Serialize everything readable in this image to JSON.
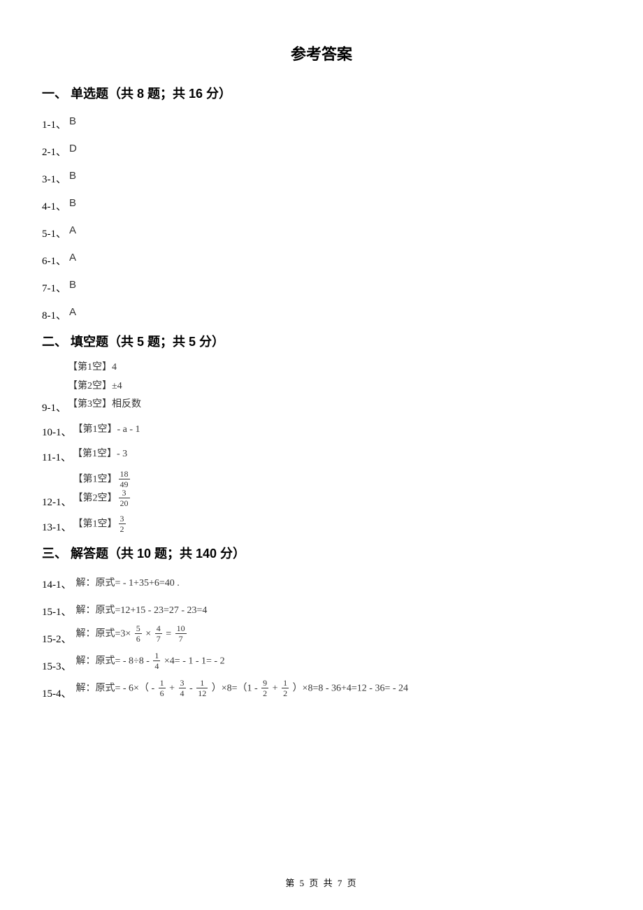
{
  "title": "参考答案",
  "footer": "第 5 页 共 7 页",
  "colors": {
    "background": "#ffffff",
    "text_main": "#000000",
    "text_answer": "#333333"
  },
  "typography": {
    "title_fontsize": 22,
    "section_fontsize": 18,
    "body_fontsize": 15,
    "answer_fontsize": 14,
    "title_family": "SimHei",
    "body_family": "SimSun"
  },
  "sections": [
    {
      "header": "一、 单选题（共 8 题；共 16 分）",
      "type": "multiple_choice",
      "items": [
        {
          "qnum": "1-1、",
          "letter": "B"
        },
        {
          "qnum": "2-1、",
          "letter": "D"
        },
        {
          "qnum": "3-1、",
          "letter": "B"
        },
        {
          "qnum": "4-1、",
          "letter": "B"
        },
        {
          "qnum": "5-1、",
          "letter": "A"
        },
        {
          "qnum": "6-1、",
          "letter": "A"
        },
        {
          "qnum": "7-1、",
          "letter": "B"
        },
        {
          "qnum": "8-1、",
          "letter": "A"
        }
      ]
    },
    {
      "header": "二、 填空题（共 5 题；共 5 分）",
      "type": "fill_blank",
      "items": [
        {
          "qnum": "9-1、",
          "lines": [
            "【第1空】4",
            "【第2空】±4",
            "【第3空】相反数"
          ]
        },
        {
          "qnum": "10-1、",
          "lines": [
            "【第1空】- a - 1"
          ]
        },
        {
          "qnum": "11-1、",
          "lines": [
            "【第1空】- 3"
          ]
        },
        {
          "qnum": "12-1、",
          "lines_frac": [
            {
              "prefix": "【第1空】",
              "num": "18",
              "den": "49"
            },
            {
              "prefix": "【第2空】",
              "num": "3",
              "den": "20"
            }
          ]
        },
        {
          "qnum": "13-1、",
          "lines_frac": [
            {
              "prefix": "【第1空】",
              "num": "3",
              "den": "2"
            }
          ]
        }
      ]
    },
    {
      "header": "三、 解答题（共 10 题；共 140 分）",
      "type": "solution",
      "items": [
        {
          "qnum": "14-1、",
          "text": "解：原式= - 1+35+6=40 ."
        },
        {
          "qnum": "15-1、",
          "text": "解：原式=12+15 - 23=27 - 23=4"
        },
        {
          "qnum": "15-2、",
          "parts": [
            {
              "t": "解：原式=3× "
            },
            {
              "frac": {
                "num": "5",
                "den": "6"
              }
            },
            {
              "t": " × "
            },
            {
              "frac": {
                "num": "4",
                "den": "7"
              }
            },
            {
              "t": "  = "
            },
            {
              "frac": {
                "num": "10",
                "den": "7"
              }
            }
          ]
        },
        {
          "qnum": "15-3、",
          "parts": [
            {
              "t": "解：原式= - 8÷8 - "
            },
            {
              "frac": {
                "num": "1",
                "den": "4"
              }
            },
            {
              "t": " ×4= - 1 - 1= - 2"
            }
          ]
        },
        {
          "qnum": "15-4、",
          "parts": [
            {
              "t": "解：原式= - 6×（ - "
            },
            {
              "frac": {
                "num": "1",
                "den": "6"
              }
            },
            {
              "t": " + "
            },
            {
              "frac": {
                "num": "3",
                "den": "4"
              }
            },
            {
              "t": "  -  "
            },
            {
              "frac": {
                "num": "1",
                "den": "12"
              }
            },
            {
              "t": " ）×8=（1 - "
            },
            {
              "frac": {
                "num": "9",
                "den": "2"
              }
            },
            {
              "t": " + "
            },
            {
              "frac": {
                "num": "1",
                "den": "2"
              }
            },
            {
              "t": " ）×8=8 - 36+4=12 - 36= - 24"
            }
          ]
        }
      ]
    }
  ]
}
